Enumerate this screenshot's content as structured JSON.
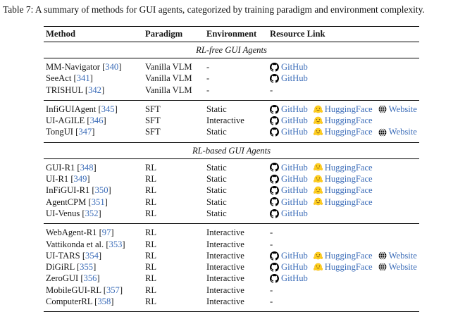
{
  "caption": "Table 7: A summary of methods for GUI agents, categorized by training paradigm and environment complexity.",
  "colors": {
    "link_blue": "#3b6cb8",
    "rule_black": "#000000",
    "huggingface_yellow": "#ffd21e",
    "github_black": "#000000"
  },
  "table": {
    "columns": [
      "Method",
      "Paradigm",
      "Environment",
      "Resource Link"
    ],
    "empty_marker": "-",
    "link_labels": {
      "github": "GitHub",
      "huggingface": "HuggingFace",
      "website": "Website"
    },
    "icon_names": {
      "github": "github-octocat-icon",
      "huggingface": "hugging-face-icon",
      "website": "globe-icon"
    },
    "sections": [
      {
        "label": "RL-free GUI Agents",
        "groups": [
          {
            "rows": [
              {
                "method": "MM-Navigator",
                "cite": "340",
                "paradigm": "Vanilla VLM",
                "environment": "-",
                "links": [
                  "github"
                ]
              },
              {
                "method": "SeeAct",
                "cite": "341",
                "paradigm": "Vanilla VLM",
                "environment": "-",
                "links": [
                  "github"
                ]
              },
              {
                "method": "TRISHUL",
                "cite": "342",
                "paradigm": "Vanilla VLM",
                "environment": "-",
                "links": []
              }
            ]
          },
          {
            "rows": [
              {
                "method": "InfiGUIAgent",
                "cite": "345",
                "paradigm": "SFT",
                "environment": "Static",
                "links": [
                  "github",
                  "huggingface",
                  "website"
                ]
              },
              {
                "method": "UI-AGILE",
                "cite": "346",
                "paradigm": "SFT",
                "environment": "Interactive",
                "links": [
                  "github",
                  "huggingface"
                ]
              },
              {
                "method": "TongUI",
                "cite": "347",
                "paradigm": "SFT",
                "environment": "Static",
                "links": [
                  "github",
                  "huggingface",
                  "website"
                ]
              }
            ]
          }
        ]
      },
      {
        "label": "RL-based GUI Agents",
        "groups": [
          {
            "rows": [
              {
                "method": "GUI-R1",
                "cite": "348",
                "paradigm": "RL",
                "environment": "Static",
                "links": [
                  "github",
                  "huggingface"
                ]
              },
              {
                "method": "UI-R1",
                "cite": "349",
                "paradigm": "RL",
                "environment": "Static",
                "links": [
                  "github",
                  "huggingface"
                ]
              },
              {
                "method": "InFiGUI-R1",
                "cite": "350",
                "paradigm": "RL",
                "environment": "Static",
                "links": [
                  "github",
                  "huggingface"
                ]
              },
              {
                "method": "AgentCPM",
                "cite": "351",
                "paradigm": "RL",
                "environment": "Static",
                "links": [
                  "github",
                  "huggingface"
                ]
              },
              {
                "method": "UI-Venus",
                "cite": "352",
                "paradigm": "RL",
                "environment": "Static",
                "links": [
                  "github"
                ]
              }
            ]
          },
          {
            "rows": [
              {
                "method": "WebAgent-R1",
                "cite": "97",
                "paradigm": "RL",
                "environment": "Interactive",
                "links": []
              },
              {
                "method": "Vattikonda et al.",
                "cite": "353",
                "paradigm": "RL",
                "environment": "Interactive",
                "links": []
              },
              {
                "method": "UI-TARS",
                "cite": "354",
                "paradigm": "RL",
                "environment": "Interactive",
                "links": [
                  "github",
                  "huggingface",
                  "website"
                ]
              },
              {
                "method": "DiGiRL",
                "cite": "355",
                "paradigm": "RL",
                "environment": "Interactive",
                "links": [
                  "github",
                  "huggingface",
                  "website"
                ]
              },
              {
                "method": "ZeroGUI",
                "cite": "356",
                "paradigm": "RL",
                "environment": "Interactive",
                "links": [
                  "github"
                ]
              },
              {
                "method": "MobileGUI-RL",
                "cite": "357",
                "paradigm": "RL",
                "environment": "Interactive",
                "links": []
              },
              {
                "method": "ComputerRL",
                "cite": "358",
                "paradigm": "RL",
                "environment": "Interactive",
                "links": []
              }
            ]
          }
        ]
      }
    ]
  }
}
